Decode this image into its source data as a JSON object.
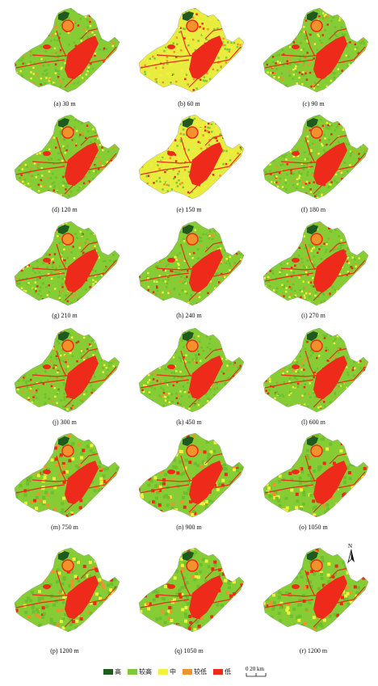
{
  "panels": [
    {
      "label": "(a) 30 m",
      "variant": "normal"
    },
    {
      "label": "(b) 60 m",
      "variant": "yellow"
    },
    {
      "label": "(c) 90 m",
      "variant": "normal"
    },
    {
      "label": "(d) 120 m",
      "variant": "normal"
    },
    {
      "label": "(e) 150 m",
      "variant": "yellow"
    },
    {
      "label": "(f) 180 m",
      "variant": "normal"
    },
    {
      "label": "(g) 210 m",
      "variant": "normal"
    },
    {
      "label": "(h) 240 m",
      "variant": "normal"
    },
    {
      "label": "(i) 270 m",
      "variant": "normal"
    },
    {
      "label": "(j) 300 m",
      "variant": "normal"
    },
    {
      "label": "(k) 450 m",
      "variant": "normal"
    },
    {
      "label": "(l) 600 m",
      "variant": "normal"
    },
    {
      "label": "(m) 750 m",
      "variant": "coarse"
    },
    {
      "label": "(n) 900 m",
      "variant": "coarse"
    },
    {
      "label": "(o) 1050 m",
      "variant": "coarse"
    },
    {
      "label": "(p) 1200 m",
      "variant": "coarse"
    },
    {
      "label": "(q) 1050 m",
      "variant": "coarse"
    },
    {
      "label": "(r) 1200 m",
      "variant": "coarse"
    }
  ],
  "legend": [
    {
      "label": "高",
      "color": "#1f5a1f"
    },
    {
      "label": "较高",
      "color": "#7ec83a"
    },
    {
      "label": "中",
      "color": "#f2f23a"
    },
    {
      "label": "较低",
      "color": "#f2922a"
    },
    {
      "label": "低",
      "color": "#ee2a1a"
    }
  ],
  "north_label": "N",
  "scale": {
    "label": "0  20 km"
  }
}
